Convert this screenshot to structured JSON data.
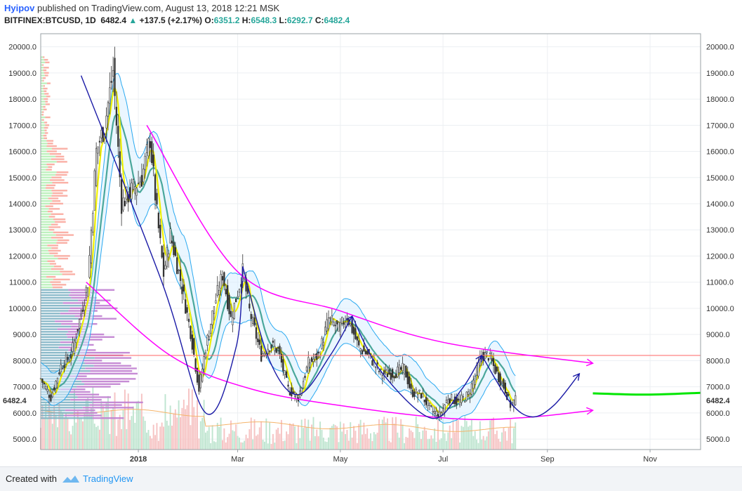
{
  "header": {
    "author": "Hyipov",
    "published": "published on TradingView.com, August 13, 2018 12:21 MSK",
    "symbol": "BITFINEX:BTCUSD, 1D",
    "last": "6482.4",
    "change": "+137.5 (+2.17%)",
    "o_label": "O:",
    "o_val": "6351.2",
    "h_label": "H:",
    "h_val": "6548.3",
    "l_label": "L:",
    "l_val": "6292.7",
    "c_label": "C:",
    "c_val": "6482.4"
  },
  "footer": {
    "created": "Created with",
    "brand": "TradingView"
  },
  "colors": {
    "up": "#26a69a",
    "down": "#ef5350",
    "candle_body": "#333333",
    "magenta": "#ff00ff",
    "blue_curve": "#1a1aa6",
    "green_projection": "#00e600",
    "resistance": "#ff6666",
    "yellow_ma": "#f0f000",
    "teal_ma": "#4aa79b",
    "bb": "#2aa9f0",
    "vp_green": "#90ee90",
    "vp_red": "#fa8072",
    "vp_blue": "#5f9ea0",
    "vp_purple": "#b05fc0"
  },
  "chart_data": {
    "type": "candlestick",
    "symbol": "BITFINEX:BTCUSD",
    "timeframe": "1D",
    "last_price": 6482.4,
    "last_price_label": "6482.4",
    "y_ticks": [
      "5000.0",
      "6000.0",
      "7000.0",
      "8000.0",
      "9000.0",
      "10000.0",
      "11000.0",
      "12000.0",
      "13000.0",
      "14000.0",
      "15000.0",
      "16000.0",
      "17000.0",
      "18000.0",
      "19000.0",
      "20000.0"
    ],
    "ylim": [
      4600,
      20500
    ],
    "x_ticks": [
      {
        "label": "2018",
        "date": "2018-01-01",
        "bold": true
      },
      {
        "label": "Mar",
        "date": "2018-03-01",
        "bold": false
      },
      {
        "label": "May",
        "date": "2018-05-01",
        "bold": false
      },
      {
        "label": "Jul",
        "date": "2018-07-01",
        "bold": false
      },
      {
        "label": "Sep",
        "date": "2018-09-01",
        "bold": false
      },
      {
        "label": "Nov",
        "date": "2018-11-01",
        "bold": false
      }
    ],
    "xlim": [
      "2017-11-04",
      "2018-12-01"
    ],
    "close_series": [
      [
        "2017-11-04",
        7300
      ],
      [
        "2017-11-10",
        6600
      ],
      [
        "2017-11-16",
        7800
      ],
      [
        "2017-11-22",
        8200
      ],
      [
        "2017-11-28",
        9800
      ],
      [
        "2017-12-02",
        11000
      ],
      [
        "2017-12-07",
        16000
      ],
      [
        "2017-12-12",
        17000
      ],
      [
        "2017-12-17",
        19100
      ],
      [
        "2017-12-22",
        14000
      ],
      [
        "2017-12-28",
        14500
      ],
      [
        "2018-01-03",
        15000
      ],
      [
        "2018-01-08",
        16500
      ],
      [
        "2018-01-12",
        13600
      ],
      [
        "2018-01-16",
        11300
      ],
      [
        "2018-01-20",
        12800
      ],
      [
        "2018-01-26",
        11100
      ],
      [
        "2018-02-01",
        9100
      ],
      [
        "2018-02-06",
        6900
      ],
      [
        "2018-02-10",
        8500
      ],
      [
        "2018-02-15",
        10100
      ],
      [
        "2018-02-20",
        11300
      ],
      [
        "2018-02-25",
        9600
      ],
      [
        "2018-03-04",
        11400
      ],
      [
        "2018-03-08",
        9900
      ],
      [
        "2018-03-15",
        8200
      ],
      [
        "2018-03-20",
        8600
      ],
      [
        "2018-03-25",
        8400
      ],
      [
        "2018-03-31",
        6900
      ],
      [
        "2018-04-06",
        6600
      ],
      [
        "2018-04-12",
        7900
      ],
      [
        "2018-04-18",
        8200
      ],
      [
        "2018-04-24",
        9600
      ],
      [
        "2018-04-30",
        9200
      ],
      [
        "2018-05-05",
        9700
      ],
      [
        "2018-05-12",
        8500
      ],
      [
        "2018-05-18",
        8200
      ],
      [
        "2018-05-25",
        7500
      ],
      [
        "2018-06-01",
        7500
      ],
      [
        "2018-06-08",
        7700
      ],
      [
        "2018-06-12",
        6800
      ],
      [
        "2018-06-18",
        6700
      ],
      [
        "2018-06-24",
        6100
      ],
      [
        "2018-06-29",
        5900
      ],
      [
        "2018-07-04",
        6600
      ],
      [
        "2018-07-10",
        6400
      ],
      [
        "2018-07-16",
        6700
      ],
      [
        "2018-07-20",
        7400
      ],
      [
        "2018-07-24",
        8200
      ],
      [
        "2018-07-28",
        8200
      ],
      [
        "2018-08-02",
        7500
      ],
      [
        "2018-08-07",
        6900
      ],
      [
        "2018-08-10",
        6300
      ],
      [
        "2018-08-13",
        6482
      ]
    ],
    "annotations": {
      "upper_trendline": [
        [
          "2018-01-06",
          17000
        ],
        [
          "2018-03-01",
          11400
        ],
        [
          "2018-05-01",
          9900
        ],
        [
          "2018-07-01",
          8700
        ],
        [
          "2018-09-28",
          7900
        ]
      ],
      "lower_trendline": [
        [
          "2017-12-01",
          11000
        ],
        [
          "2018-01-20",
          8200
        ],
        [
          "2018-03-10",
          6900
        ],
        [
          "2018-05-10",
          6200
        ],
        [
          "2018-07-10",
          5770
        ],
        [
          "2018-08-20",
          5830
        ],
        [
          "2018-09-28",
          6100
        ]
      ],
      "resistance_level": 8200,
      "blue_waves": [
        [
          [
            "2017-11-28",
            18900
          ],
          [
            "2018-01-15",
            11000
          ],
          [
            "2018-02-10",
            6000
          ],
          [
            "2018-02-28",
            8500
          ],
          [
            "2018-03-04",
            11600
          ]
        ],
        [
          [
            "2018-03-04",
            11600
          ],
          [
            "2018-03-20",
            8000
          ],
          [
            "2018-04-06",
            6700
          ],
          [
            "2018-04-25",
            8200
          ],
          [
            "2018-05-08",
            9700
          ]
        ],
        [
          [
            "2018-05-08",
            9700
          ],
          [
            "2018-05-25",
            7600
          ],
          [
            "2018-06-24",
            5800
          ],
          [
            "2018-07-12",
            6900
          ],
          [
            "2018-07-24",
            8200
          ]
        ],
        [
          [
            "2018-07-24",
            8200
          ],
          [
            "2018-08-10",
            6400
          ],
          [
            "2018-08-23",
            5850
          ],
          [
            "2018-09-05",
            6300
          ],
          [
            "2018-09-20",
            7500
          ]
        ]
      ],
      "projection_level": [
        [
          "2018-09-28",
          6750
        ],
        [
          "2018-10-30",
          6700
        ],
        [
          "2018-12-01",
          6770
        ]
      ]
    }
  }
}
